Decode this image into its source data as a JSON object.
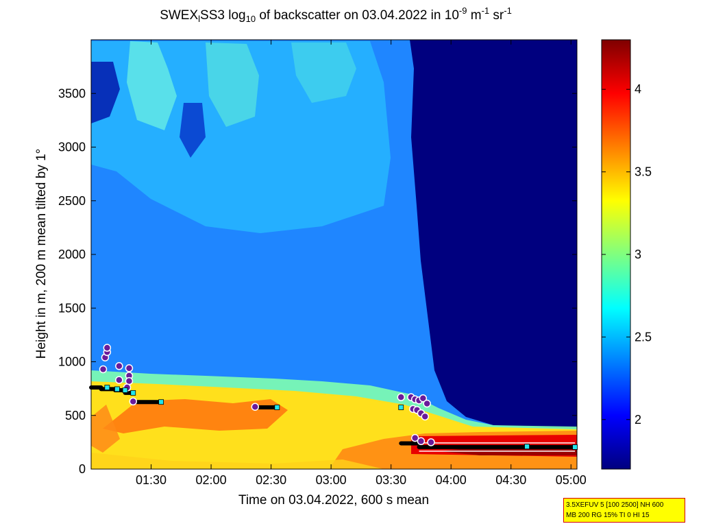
{
  "title": {
    "part1": "SWEX",
    "sub1": "l",
    "part2": "SS3 log",
    "sub2": "10",
    "part3": " of backscatter on 03.04.2022 in 10",
    "sup1": "-9",
    "part4": " m",
    "sup2": "-1",
    "part5": " sr",
    "sup3": "-1"
  },
  "info_box": {
    "line1": "3.5XEFUV 5 [100 2500] NH 600",
    "line2": "MB 200 RG 15% TI 0 HI 15"
  },
  "chart_data": {
    "type": "heatmap",
    "xlabel": "Time on 03.04.2022, 600 s mean",
    "ylabel": "Height in m, 200 m mean tilted by 1°",
    "xlim": [
      "01:00",
      "05:03"
    ],
    "ylim": [
      0,
      4000
    ],
    "x_ticks": [
      "01:30",
      "02:00",
      "02:30",
      "03:00",
      "03:30",
      "04:00",
      "04:30",
      "05:00"
    ],
    "y_ticks": [
      0,
      500,
      1000,
      1500,
      2000,
      2500,
      3000,
      3500
    ],
    "colorbar": {
      "range": [
        1.7,
        4.3
      ],
      "ticks": [
        "2",
        "2.5",
        "3",
        "3.5",
        "4"
      ],
      "colormap": "jet"
    },
    "mixing_layer_segments": [
      {
        "t0": "01:00",
        "t1": "01:05",
        "h": 760
      },
      {
        "t0": "01:05",
        "t1": "01:12",
        "h": 745
      },
      {
        "t0": "01:12",
        "t1": "01:17",
        "h": 735
      },
      {
        "t0": "01:17",
        "t1": "01:21",
        "h": 710
      },
      {
        "t0": "01:21",
        "t1": "01:35",
        "h": 625
      },
      {
        "t0": "02:22",
        "t1": "02:33",
        "h": 575
      },
      {
        "t0": "03:35",
        "t1": "03:44",
        "h": 240
      },
      {
        "t0": "03:44",
        "t1": "05:02",
        "h": 205
      }
    ],
    "cyan_markers": [
      {
        "t": "01:08",
        "h": 760
      },
      {
        "t": "01:13",
        "h": 745
      },
      {
        "t": "01:17",
        "h": 735
      },
      {
        "t": "01:21",
        "h": 710
      },
      {
        "t": "01:35",
        "h": 625
      },
      {
        "t": "02:33",
        "h": 575
      },
      {
        "t": "03:35",
        "h": 575
      },
      {
        "t": "04:38",
        "h": 210
      },
      {
        "t": "05:02",
        "h": 205
      }
    ],
    "cloud_layer_points": [
      {
        "t": "01:06",
        "h": 930
      },
      {
        "t": "01:07",
        "h": 1040
      },
      {
        "t": "01:08",
        "h": 1090
      },
      {
        "t": "01:08",
        "h": 1130
      },
      {
        "t": "01:14",
        "h": 960
      },
      {
        "t": "01:14",
        "h": 830
      },
      {
        "t": "01:19",
        "h": 940
      },
      {
        "t": "01:19",
        "h": 870
      },
      {
        "t": "01:19",
        "h": 820
      },
      {
        "t": "01:18",
        "h": 760
      },
      {
        "t": "01:21",
        "h": 630
      },
      {
        "t": "02:22",
        "h": 580
      },
      {
        "t": "03:35",
        "h": 670
      },
      {
        "t": "03:40",
        "h": 670
      },
      {
        "t": "03:42",
        "h": 650
      },
      {
        "t": "03:44",
        "h": 640
      },
      {
        "t": "03:46",
        "h": 660
      },
      {
        "t": "03:48",
        "h": 610
      },
      {
        "t": "03:41",
        "h": 560
      },
      {
        "t": "03:43",
        "h": 550
      },
      {
        "t": "03:45",
        "h": 520
      },
      {
        "t": "03:47",
        "h": 490
      },
      {
        "t": "03:42",
        "h": 290
      },
      {
        "t": "03:45",
        "h": 260
      },
      {
        "t": "03:50",
        "h": 250
      }
    ]
  }
}
